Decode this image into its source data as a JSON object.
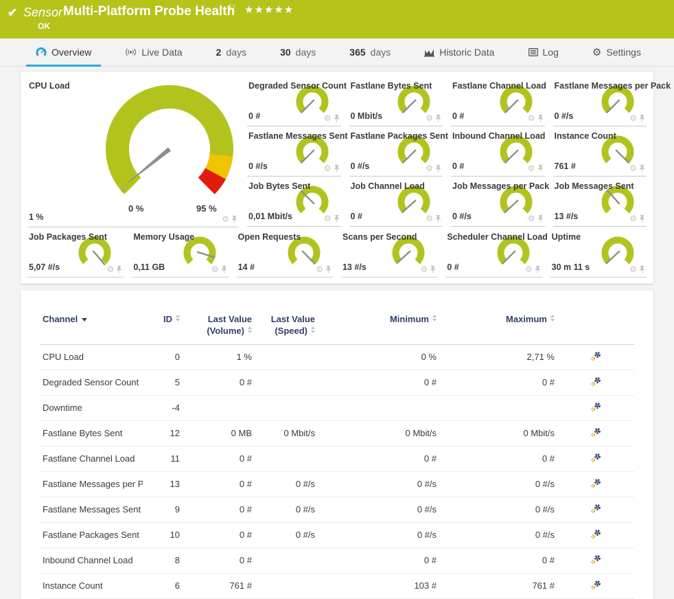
{
  "colors": {
    "header_bg": "#b5c31b",
    "gauge_green": "#b3c31e",
    "gauge_yellow": "#f0c500",
    "gauge_red": "#e11c0c",
    "needle": "#8e8e8e",
    "tab_accent": "#29a9e0",
    "tab_icon_blue": "#2aa2d8",
    "table_header_text": "#2f3f68",
    "icon_gray": "#c4c4c4",
    "small_gear_orange": "#e0a11e"
  },
  "header": {
    "check": "✔",
    "kind": "Sensor",
    "title": "Multi-Platform Probe Health",
    "flag": "⚐",
    "stars": "★★★★★",
    "status": "OK"
  },
  "tabs": [
    {
      "label": "Overview",
      "icon": "gauge-icon",
      "active": true
    },
    {
      "label": "Live Data",
      "icon": "broadcast-icon",
      "active": false
    },
    {
      "number": "2",
      "label": "days",
      "active": false
    },
    {
      "number": "30",
      "label": "days",
      "active": false
    },
    {
      "number": "365",
      "label": "days",
      "active": false
    },
    {
      "label": "Historic Data",
      "icon": "chart-icon",
      "active": false
    },
    {
      "label": "Log",
      "icon": "log-icon",
      "active": false
    },
    {
      "label": "Settings",
      "icon": "gear-icon",
      "active": false
    }
  ],
  "cpu_gauge": {
    "title": "CPU Load",
    "value": "1 %",
    "min_label": "0 %",
    "max_label": "95 %",
    "avg_marker": "x̄",
    "needle_deg": 231,
    "green_end_deg": 97,
    "yellow_end_deg": 118,
    "scale_start_deg": 225,
    "scale_end_deg": 135
  },
  "gauges_top": [
    {
      "title": "Degraded Sensor Count",
      "value": "0 #",
      "needle_deg": 225
    },
    {
      "title": "Fastlane Bytes Sent",
      "value": "0 Mbit/s",
      "needle_deg": 225
    },
    {
      "title": "Fastlane Channel Load",
      "value": "0 #",
      "needle_deg": 225
    },
    {
      "title": "Fastlane Messages per Pack",
      "value": "0 #/s",
      "needle_deg": 225
    },
    {
      "title": "Fastlane Messages Sent",
      "value": "0 #/s",
      "needle_deg": 225
    },
    {
      "title": "Fastlane Packages Sent",
      "value": "0 #/s",
      "needle_deg": 225
    },
    {
      "title": "Inbound Channel Load",
      "value": "0 #",
      "needle_deg": 225
    },
    {
      "title": "Instance Count",
      "value": "761 #",
      "needle_deg": 135
    },
    {
      "title": "Job Bytes Sent",
      "value": "0,01 Mbit/s",
      "needle_deg": 315
    },
    {
      "title": "Job Channel Load",
      "value": "0 #",
      "needle_deg": 228
    },
    {
      "title": "Job Messages per Pack",
      "value": "0 #/s",
      "needle_deg": 227
    },
    {
      "title": "Job Messages Sent",
      "value": "13 #/s",
      "needle_deg": 318
    }
  ],
  "gauges_bottom": [
    {
      "title": "Job Packages Sent",
      "value": "5,07 #/s",
      "needle_deg": 140
    },
    {
      "title": "Memory Usage",
      "value": "0,11 GB",
      "needle_deg": 107
    },
    {
      "title": "Open Requests",
      "value": "14 #",
      "needle_deg": 136
    },
    {
      "title": "Scans per Second",
      "value": "13 #/s",
      "needle_deg": 228
    },
    {
      "title": "Scheduler Channel Load",
      "value": "0 #",
      "needle_deg": 225
    },
    {
      "title": "Uptime",
      "value": "30 m 11 s",
      "needle_deg": 227
    }
  ],
  "table": {
    "headers": {
      "channel": "Channel",
      "id": "ID",
      "last_volume": "Last Value (Volume)",
      "last_speed": "Last Value (Speed)",
      "minimum": "Minimum",
      "maximum": "Maximum"
    },
    "rows": [
      {
        "channel": "CPU Load",
        "id": "0",
        "last_volume": "1 %",
        "last_speed": "",
        "minimum": "0 %",
        "maximum": "2,71 %"
      },
      {
        "channel": "Degraded Sensor Count",
        "id": "5",
        "last_volume": "0 #",
        "last_speed": "",
        "minimum": "0 #",
        "maximum": "0 #"
      },
      {
        "channel": "Downtime",
        "id": "-4",
        "last_volume": "",
        "last_speed": "",
        "minimum": "",
        "maximum": ""
      },
      {
        "channel": "Fastlane Bytes Sent",
        "id": "12",
        "last_volume": "0 MB",
        "last_speed": "0 Mbit/s",
        "minimum": "0 Mbit/s",
        "maximum": "0 Mbit/s"
      },
      {
        "channel": "Fastlane Channel Load",
        "id": "11",
        "last_volume": "0 #",
        "last_speed": "",
        "minimum": "0 #",
        "maximum": "0 #"
      },
      {
        "channel": "Fastlane Messages per P...",
        "id": "13",
        "last_volume": "0 #",
        "last_speed": "0 #/s",
        "minimum": "0 #/s",
        "maximum": "0 #/s"
      },
      {
        "channel": "Fastlane Messages Sent",
        "id": "9",
        "last_volume": "0 #",
        "last_speed": "0 #/s",
        "minimum": "0 #/s",
        "maximum": "0 #/s"
      },
      {
        "channel": "Fastlane Packages Sent",
        "id": "10",
        "last_volume": "0 #",
        "last_speed": "0 #/s",
        "minimum": "0 #/s",
        "maximum": "0 #/s"
      },
      {
        "channel": "Inbound Channel Load",
        "id": "8",
        "last_volume": "0 #",
        "last_speed": "",
        "minimum": "0 #",
        "maximum": "0 #"
      },
      {
        "channel": "Instance Count",
        "id": "6",
        "last_volume": "761 #",
        "last_speed": "",
        "minimum": "103 #",
        "maximum": "761 #"
      }
    ]
  }
}
